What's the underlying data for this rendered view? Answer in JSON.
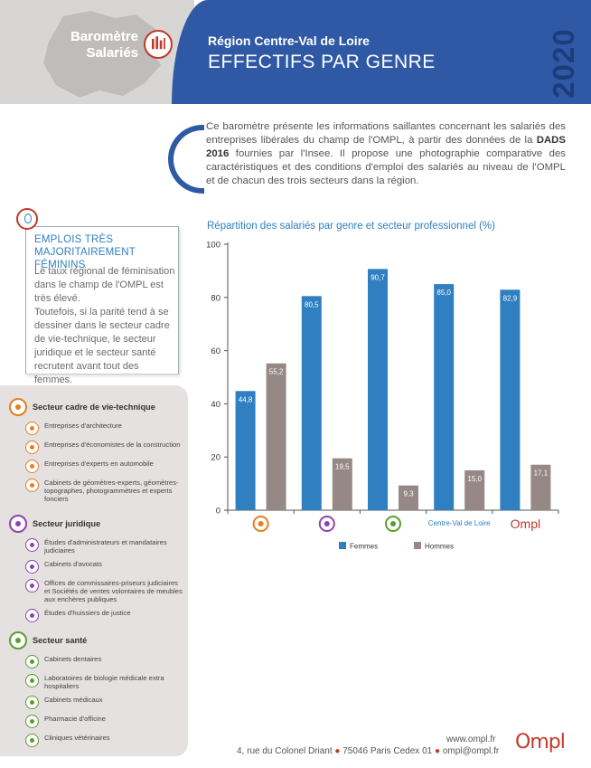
{
  "header": {
    "brand_line1": "Baromètre",
    "brand_line2": "Salariés",
    "region_title": "Région Centre-Val de Loire",
    "main_title": "EFFECTIFS PAR GENRE",
    "year": "2020"
  },
  "intro": {
    "text_before": "Ce baromètre présente les informations saillantes concernant les salariés des entreprises libérales du champ de l'OMPL, à partir des données de la ",
    "text_bold": "DADS 2016",
    "text_after": " fournies par l'Insee. Il propose une photographie comparative des caractéristiques et des conditions d'emploi des salariés au niveau de l'OMPL et de chacun des trois secteurs dans la région."
  },
  "feature": {
    "title": "EMPLOIS TRÈS MAJORITAIREMENT FÉMININS",
    "para1": "Le taux régional de féminisation dans le champ de l'OMPL est très élevé.",
    "para2": "Toutefois, si la parité tend à se dessiner dans le secteur cadre de vie-technique, le secteur juridique et le secteur santé recrutent avant tout des femmes."
  },
  "sectors": [
    {
      "name": "Secteur cadre de vie-technique",
      "color": "#e67e22",
      "items": [
        "Entreprises d'architecture",
        "Entreprises d'économistes de la construction",
        "Entreprises d'experts en automobile",
        "Cabinets de géomètres-experts, géomètres-topographes, photogrammètres et experts fonciers"
      ]
    },
    {
      "name": "Secteur juridique",
      "color": "#8e44ad",
      "items": [
        "Études d'administrateurs et mandataires judiciaires",
        "Cabinets d'avocats",
        "Offices de commissaires-priseurs judiciaires et Sociétés de ventes volontaires de meubles aux enchères publiques",
        "Études d'huissiers de justice"
      ]
    },
    {
      "name": "Secteur santé",
      "color": "#5b9d2e",
      "items": [
        "Cabinets dentaires",
        "Laboratoires de biologie médicale extra hospitaliers",
        "Cabinets médicaux",
        "Pharmacie d'officine",
        "Cliniques vétérinaires"
      ]
    }
  ],
  "chart_data": {
    "type": "bar",
    "title": "Répartition des salariés par genre et secteur professionnel (%)",
    "categories": [
      "cadre-de-vie-icon",
      "juridique-icon",
      "sante-icon",
      "Centre-Val de Loire",
      "Ompl"
    ],
    "category_labels": [
      "",
      "",
      "",
      "Centre-Val de Loire",
      "Ompl"
    ],
    "series": [
      {
        "name": "Femmes",
        "color": "#2f7fc1",
        "values": [
          44.8,
          80.5,
          90.7,
          85.0,
          82.9
        ],
        "labels": [
          "44,8",
          "80,5",
          "90,7",
          "85,0",
          "82,9"
        ]
      },
      {
        "name": "Hommes",
        "color": "#958885",
        "values": [
          55.2,
          19.5,
          9.3,
          15.0,
          17.1
        ],
        "labels": [
          "55,2",
          "19,5",
          "9,3",
          "15,0",
          "17,1"
        ]
      }
    ],
    "ylim": [
      0,
      100
    ],
    "yticks": [
      0,
      20,
      40,
      60,
      80,
      100
    ],
    "grid": false,
    "legend": "bottom"
  },
  "footer": {
    "url": "www.ompl.fr",
    "address": "4, rue du Colonel Driant",
    "city": "75046 Paris Cedex 01",
    "email": "ompl@ompl.fr",
    "logo": "Ompl",
    "sep": "●"
  }
}
